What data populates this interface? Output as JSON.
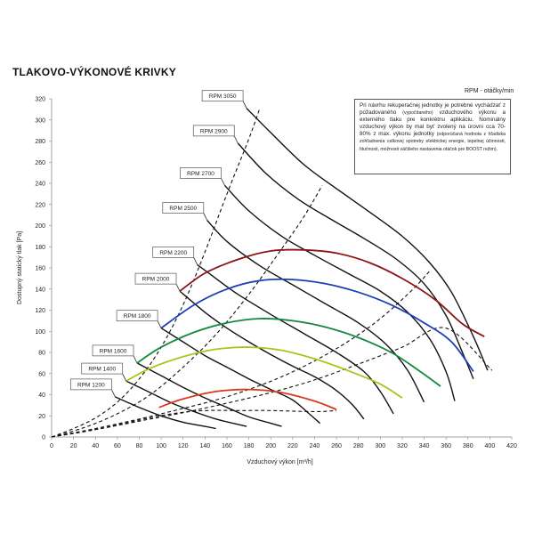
{
  "title": "TLAKOVO-VÝKONOVÉ KRIVKY",
  "rpm_unit": "RPM - otáčky/min",
  "note": {
    "main": "Pri návrhu rekuperačnej jednotky je potrebné vychádzať z požadovaného",
    "main_small": "(vypočítaného)",
    "main2": "vzduchového výkonu a externého tlaku pre konkrétnu aplikáciu. Nominálny vzduchový výkon by mal byť zvolený na úrovni cca 70-80% z max. výkonu jednotky",
    "small": "(odporúčaná hodnota z hľadiska zohľadnenia celkovej spotreby elektrickej energie, tepelnej účinnosti, hlučnosti, možnosti väčšieho nastavenia otáčok pre BOOST režim)."
  },
  "chart_data": {
    "type": "line",
    "xlabel": "Vzduchový výkon [m³/h]",
    "ylabel": "Dostupný statický tlak [Pa]",
    "xlim": [
      0,
      420
    ],
    "ylim": [
      0,
      320
    ],
    "x_ticks": [
      0,
      20,
      40,
      60,
      80,
      100,
      120,
      140,
      160,
      180,
      200,
      220,
      240,
      260,
      280,
      300,
      320,
      340,
      360,
      380,
      400,
      420
    ],
    "y_ticks": [
      0,
      20,
      40,
      60,
      80,
      100,
      120,
      140,
      160,
      180,
      200,
      220,
      240,
      260,
      280,
      300,
      320
    ],
    "grid": false,
    "rpm_curves": [
      {
        "label": "RPM 1200",
        "rpm": 1200,
        "points": [
          [
            58,
            38
          ],
          [
            80,
            28
          ],
          [
            100,
            20
          ],
          [
            120,
            14
          ],
          [
            140,
            10
          ],
          [
            150,
            8
          ]
        ]
      },
      {
        "label": "RPM 1400",
        "rpm": 1400,
        "points": [
          [
            68,
            53
          ],
          [
            90,
            42
          ],
          [
            110,
            32
          ],
          [
            130,
            24
          ],
          [
            150,
            17
          ],
          [
            170,
            12
          ],
          [
            178,
            10
          ]
        ]
      },
      {
        "label": "RPM 1600",
        "rpm": 1600,
        "points": [
          [
            78,
            70
          ],
          [
            100,
            58
          ],
          [
            120,
            47
          ],
          [
            140,
            37
          ],
          [
            160,
            28
          ],
          [
            180,
            19
          ],
          [
            200,
            13
          ],
          [
            210,
            10
          ]
        ]
      },
      {
        "label": "RPM 1800",
        "rpm": 1800,
        "points": [
          [
            100,
            103
          ],
          [
            120,
            90
          ],
          [
            140,
            77
          ],
          [
            160,
            66
          ],
          [
            180,
            55
          ],
          [
            200,
            45
          ],
          [
            220,
            35
          ],
          [
            235,
            22
          ],
          [
            245,
            13
          ]
        ]
      },
      {
        "label": "RPM 2000",
        "rpm": 2000,
        "points": [
          [
            117,
            138
          ],
          [
            140,
            118
          ],
          [
            160,
            103
          ],
          [
            180,
            90
          ],
          [
            200,
            78
          ],
          [
            220,
            67
          ],
          [
            240,
            57
          ],
          [
            260,
            44
          ],
          [
            275,
            30
          ],
          [
            285,
            17
          ]
        ]
      },
      {
        "label": "RPM 2200",
        "rpm": 2200,
        "points": [
          [
            133,
            163
          ],
          [
            150,
            150
          ],
          [
            170,
            135
          ],
          [
            200,
            116
          ],
          [
            230,
            98
          ],
          [
            260,
            80
          ],
          [
            285,
            62
          ],
          [
            300,
            43
          ],
          [
            312,
            22
          ]
        ]
      },
      {
        "label": "RPM 2500",
        "rpm": 2500,
        "points": [
          [
            142,
            205
          ],
          [
            160,
            185
          ],
          [
            190,
            162
          ],
          [
            220,
            144
          ],
          [
            250,
            126
          ],
          [
            280,
            108
          ],
          [
            305,
            88
          ],
          [
            325,
            63
          ],
          [
            340,
            33
          ]
        ]
      },
      {
        "label": "RPM 2700",
        "rpm": 2700,
        "points": [
          [
            158,
            238
          ],
          [
            180,
            214
          ],
          [
            210,
            190
          ],
          [
            240,
            172
          ],
          [
            270,
            155
          ],
          [
            300,
            138
          ],
          [
            325,
            118
          ],
          [
            345,
            93
          ],
          [
            360,
            62
          ],
          [
            368,
            34
          ]
        ]
      },
      {
        "label": "RPM 2900",
        "rpm": 2900,
        "points": [
          [
            170,
            278
          ],
          [
            195,
            250
          ],
          [
            225,
            225
          ],
          [
            255,
            206
          ],
          [
            285,
            188
          ],
          [
            315,
            168
          ],
          [
            340,
            145
          ],
          [
            360,
            115
          ],
          [
            375,
            80
          ],
          [
            385,
            55
          ]
        ]
      },
      {
        "label": "RPM 3050",
        "rpm": 3050,
        "points": [
          [
            178,
            311
          ],
          [
            200,
            288
          ],
          [
            230,
            258
          ],
          [
            260,
            235
          ],
          [
            290,
            213
          ],
          [
            320,
            190
          ],
          [
            345,
            165
          ],
          [
            365,
            137
          ],
          [
            385,
            95
          ],
          [
            398,
            63
          ]
        ]
      }
    ],
    "dashed_lines": [
      [
        [
          0,
          0
        ],
        [
          40,
          7
        ],
        [
          80,
          15
        ],
        [
          120,
          23
        ],
        [
          160,
          32
        ],
        [
          200,
          42
        ],
        [
          240,
          54
        ],
        [
          280,
          69
        ],
        [
          320,
          85
        ],
        [
          360,
          103
        ],
        [
          402,
          63
        ]
      ],
      [
        [
          0,
          0
        ],
        [
          40,
          8
        ],
        [
          80,
          17
        ],
        [
          120,
          27
        ],
        [
          150,
          35
        ],
        [
          180,
          45
        ],
        [
          210,
          57
        ],
        [
          240,
          72
        ],
        [
          270,
          90
        ],
        [
          300,
          112
        ],
        [
          330,
          140
        ],
        [
          345,
          157
        ]
      ],
      [
        [
          0,
          0
        ],
        [
          30,
          9
        ],
        [
          60,
          22
        ],
        [
          90,
          40
        ],
        [
          120,
          66
        ],
        [
          150,
          97
        ],
        [
          180,
          135
        ],
        [
          210,
          178
        ],
        [
          230,
          208
        ],
        [
          247,
          238
        ]
      ],
      [
        [
          0,
          0
        ],
        [
          20,
          8
        ],
        [
          40,
          18
        ],
        [
          60,
          33
        ],
        [
          80,
          55
        ],
        [
          100,
          85
        ],
        [
          120,
          125
        ],
        [
          140,
          175
        ],
        [
          160,
          230
        ],
        [
          180,
          282
        ],
        [
          190,
          311
        ]
      ],
      [
        [
          0,
          0
        ],
        [
          40,
          7
        ],
        [
          80,
          16
        ],
        [
          110,
          22
        ],
        [
          140,
          25
        ],
        [
          170,
          25
        ],
        [
          200,
          25
        ],
        [
          240,
          24
        ],
        [
          260,
          25
        ]
      ]
    ],
    "colored_curves": [
      {
        "color": "#8b1515",
        "points": [
          [
            117,
            138
          ],
          [
            140,
            155
          ],
          [
            170,
            168
          ],
          [
            200,
            176
          ],
          [
            230,
            177
          ],
          [
            260,
            174
          ],
          [
            290,
            165
          ],
          [
            320,
            150
          ],
          [
            350,
            130
          ],
          [
            375,
            107
          ],
          [
            395,
            95
          ]
        ]
      },
      {
        "color": "#1f3fb5",
        "points": [
          [
            100,
            103
          ],
          [
            130,
            125
          ],
          [
            160,
            140
          ],
          [
            190,
            148
          ],
          [
            220,
            149
          ],
          [
            250,
            145
          ],
          [
            280,
            137
          ],
          [
            310,
            125
          ],
          [
            340,
            108
          ],
          [
            365,
            90
          ],
          [
            385,
            62
          ]
        ]
      },
      {
        "color": "#128a3c",
        "points": [
          [
            78,
            70
          ],
          [
            100,
            85
          ],
          [
            130,
            99
          ],
          [
            160,
            108
          ],
          [
            190,
            112
          ],
          [
            220,
            110
          ],
          [
            250,
            104
          ],
          [
            280,
            94
          ],
          [
            310,
            80
          ],
          [
            335,
            63
          ],
          [
            355,
            48
          ]
        ]
      },
      {
        "color": "#a8c51a",
        "points": [
          [
            68,
            53
          ],
          [
            90,
            65
          ],
          [
            120,
            76
          ],
          [
            150,
            83
          ],
          [
            180,
            85
          ],
          [
            210,
            82
          ],
          [
            240,
            74
          ],
          [
            270,
            63
          ],
          [
            300,
            50
          ],
          [
            320,
            37
          ]
        ]
      },
      {
        "color": "#d93a1d",
        "points": [
          [
            98,
            28
          ],
          [
            120,
            36
          ],
          [
            150,
            43
          ],
          [
            180,
            45
          ],
          [
            210,
            42
          ],
          [
            240,
            34
          ],
          [
            260,
            26
          ]
        ]
      }
    ]
  }
}
